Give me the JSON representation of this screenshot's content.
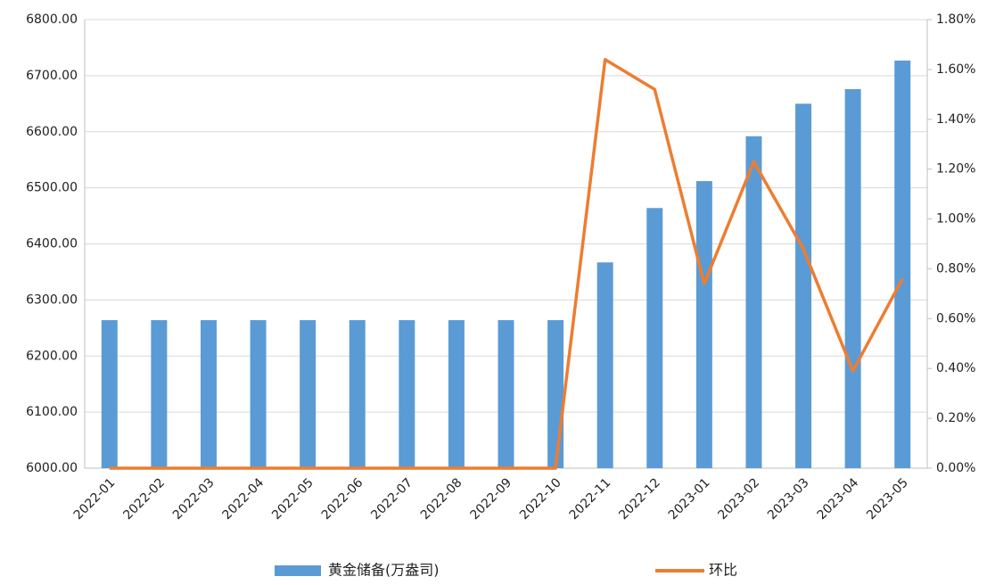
{
  "chart_data": {
    "type": "bar",
    "categories": [
      "2022-01",
      "2022-02",
      "2022-03",
      "2022-04",
      "2022-05",
      "2022-06",
      "2022-07",
      "2022-08",
      "2022-09",
      "2022-10",
      "2022-11",
      "2022-12",
      "2023-01",
      "2023-02",
      "2023-03",
      "2023-04",
      "2023-05"
    ],
    "series": [
      {
        "name": "黄金储备(万盎司)",
        "type": "bar",
        "color": "#5b9bd5",
        "axis": "y",
        "values": [
          6264,
          6264,
          6264,
          6264,
          6264,
          6264,
          6264,
          6264,
          6264,
          6264,
          6367,
          6464,
          6512,
          6592,
          6650,
          6676,
          6727
        ]
      },
      {
        "name": "环比",
        "type": "line",
        "color": "#ed7d31",
        "axis": "y2",
        "values": [
          0,
          0,
          0,
          0,
          0,
          0,
          0,
          0,
          0,
          0,
          1.64,
          1.52,
          0.74,
          1.23,
          0.88,
          0.39,
          0.76
        ]
      }
    ],
    "ylim": [
      6000,
      6800
    ],
    "yticks": [
      {
        "value": 6000,
        "label": "6000.00"
      },
      {
        "value": 6100,
        "label": "6100.00"
      },
      {
        "value": 6200,
        "label": "6200.00"
      },
      {
        "value": 6300,
        "label": "6300.00"
      },
      {
        "value": 6400,
        "label": "6400.00"
      },
      {
        "value": 6500,
        "label": "6500.00"
      },
      {
        "value": 6600,
        "label": "6600.00"
      },
      {
        "value": 6700,
        "label": "6700.00"
      },
      {
        "value": 6800,
        "label": "6800.00"
      }
    ],
    "y2lim": [
      0,
      1.8
    ],
    "y2ticks": [
      {
        "value": 0,
        "label": "0.00%"
      },
      {
        "value": 0.2,
        "label": "0.20%"
      },
      {
        "value": 0.4,
        "label": "0.40%"
      },
      {
        "value": 0.6,
        "label": "0.60%"
      },
      {
        "value": 0.8,
        "label": "0.80%"
      },
      {
        "value": 1.0,
        "label": "1.00%"
      },
      {
        "value": 1.2,
        "label": "1.20%"
      },
      {
        "value": 1.4,
        "label": "1.40%"
      },
      {
        "value": 1.6,
        "label": "1.60%"
      },
      {
        "value": 1.8,
        "label": "1.80%"
      }
    ],
    "grid": true,
    "legend": "bottom"
  }
}
